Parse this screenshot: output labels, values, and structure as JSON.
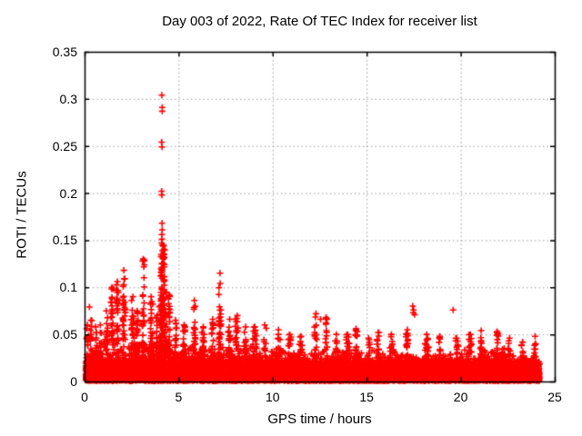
{
  "chart_data": {
    "type": "scatter",
    "title": "Day 003 of 2022, Rate Of TEC Index for receiver list",
    "xlabel": "GPS time / hours",
    "ylabel": "ROTI / TECUs",
    "xlim": [
      0,
      25
    ],
    "ylim": [
      0,
      0.35
    ],
    "grid": true,
    "legend": "none",
    "marker": {
      "glyph": "plus",
      "color": "#ff0000",
      "size": 7,
      "stroke": 1.6
    },
    "colors": {
      "background": "#ffffff",
      "grid": "#9b9b9b",
      "border": "#000000",
      "text": "#000000"
    },
    "xticks": [
      {
        "v": 0,
        "label": "0"
      },
      {
        "v": 5,
        "label": "5"
      },
      {
        "v": 10,
        "label": "10"
      },
      {
        "v": 15,
        "label": "15"
      },
      {
        "v": 20,
        "label": "20"
      },
      {
        "v": 25,
        "label": "25"
      }
    ],
    "yticks": [
      {
        "v": 0,
        "label": "0"
      },
      {
        "v": 0.05,
        "label": "0.05"
      },
      {
        "v": 0.1,
        "label": "0.1"
      },
      {
        "v": 0.15,
        "label": "0.15"
      },
      {
        "v": 0.2,
        "label": "0.2"
      },
      {
        "v": 0.25,
        "label": "0.25"
      },
      {
        "v": 0.3,
        "label": "0.3"
      },
      {
        "v": 0.35,
        "label": "0.35"
      }
    ],
    "data_x_range": [
      0.05,
      24.2
    ],
    "description": "Dense band of ROTI values 0-0.045 TECUs across 0-24.2 h with vertical burst clusters; maximum burst ~0.30 TECUs near 4.1 h.",
    "generator": {
      "seed": 20220103,
      "x_min": 0.05,
      "x_max": 24.2,
      "layers": [
        {
          "n": 4200,
          "y0": 0.0005,
          "amp": 0.009,
          "pow": 1.0,
          "use_profile": false
        },
        {
          "n": 6200,
          "y0": 0.001,
          "amp": 0.021,
          "pow": 1.35,
          "use_profile": false
        },
        {
          "n": 3000,
          "y0": 0.002,
          "amp": 1.0,
          "pow": 2.5,
          "use_profile": true
        }
      ],
      "amp_profile": [
        [
          0,
          0.04
        ],
        [
          1,
          0.046
        ],
        [
          4.7,
          0.041
        ],
        [
          9,
          0.035
        ],
        [
          13,
          0.032
        ],
        [
          17,
          0.03
        ],
        [
          20,
          0.034
        ],
        [
          22.5,
          0.03
        ]
      ],
      "ripple": {
        "f1": 2.7,
        "p1": 1.3,
        "f2": 9.1,
        "a": 0.3
      },
      "clusters": [
        [
          0.15,
          0.1,
          0.06,
          18
        ],
        [
          0.35,
          0.15,
          0.065,
          25
        ],
        [
          0.6,
          0.12,
          0.058,
          20
        ],
        [
          0.85,
          0.15,
          0.06,
          22
        ],
        [
          1.15,
          0.15,
          0.075,
          30
        ],
        [
          1.45,
          0.12,
          0.1,
          35
        ],
        [
          1.75,
          0.12,
          0.106,
          38
        ],
        [
          2.1,
          0.15,
          0.118,
          42
        ],
        [
          2.55,
          0.15,
          0.09,
          32
        ],
        [
          2.8,
          0.1,
          0.075,
          24
        ],
        [
          3.12,
          0.12,
          0.13,
          42
        ],
        [
          3.55,
          0.15,
          0.09,
          30
        ],
        [
          3.85,
          0.1,
          0.07,
          22
        ],
        [
          4.02,
          0.1,
          0.08,
          25
        ],
        [
          4.15,
          0.22,
          0.145,
          130
        ],
        [
          4.32,
          0.1,
          0.095,
          28
        ],
        [
          4.5,
          0.12,
          0.092,
          30
        ],
        [
          4.85,
          0.1,
          0.065,
          22
        ],
        [
          5.3,
          0.15,
          0.06,
          25
        ],
        [
          5.85,
          0.12,
          0.086,
          30
        ],
        [
          6.3,
          0.15,
          0.058,
          24
        ],
        [
          6.8,
          0.12,
          0.066,
          26
        ],
        [
          7.2,
          0.12,
          0.115,
          38
        ],
        [
          7.7,
          0.15,
          0.066,
          28
        ],
        [
          8.1,
          0.2,
          0.07,
          40
        ],
        [
          8.55,
          0.15,
          0.058,
          24
        ],
        [
          9.05,
          0.2,
          0.058,
          28
        ],
        [
          9.6,
          0.15,
          0.06,
          24
        ],
        [
          10.3,
          0.2,
          0.055,
          28
        ],
        [
          10.9,
          0.15,
          0.05,
          22
        ],
        [
          11.5,
          0.15,
          0.048,
          20
        ],
        [
          12.3,
          0.15,
          0.072,
          34
        ],
        [
          12.85,
          0.12,
          0.068,
          26
        ],
        [
          13.4,
          0.15,
          0.05,
          20
        ],
        [
          14.0,
          0.2,
          0.05,
          24
        ],
        [
          14.45,
          0.12,
          0.056,
          24
        ],
        [
          15.1,
          0.15,
          0.046,
          18
        ],
        [
          15.6,
          0.12,
          0.052,
          20
        ],
        [
          16.3,
          0.15,
          0.05,
          20
        ],
        [
          17.15,
          0.12,
          0.055,
          24
        ],
        [
          18.2,
          0.2,
          0.05,
          24
        ],
        [
          18.9,
          0.15,
          0.048,
          20
        ],
        [
          19.8,
          0.15,
          0.046,
          18
        ],
        [
          20.5,
          0.15,
          0.05,
          20
        ],
        [
          21.1,
          0.12,
          0.054,
          22
        ],
        [
          21.95,
          0.15,
          0.053,
          26
        ],
        [
          22.6,
          0.15,
          0.046,
          18
        ],
        [
          23.3,
          0.15,
          0.042,
          16
        ],
        [
          23.95,
          0.15,
          0.048,
          22
        ]
      ],
      "outliers": [
        [
          0.26,
          0.079
        ],
        [
          4.11,
          0.304
        ],
        [
          4.13,
          0.291
        ],
        [
          4.13,
          0.287
        ],
        [
          4.1,
          0.254
        ],
        [
          4.12,
          0.249
        ],
        [
          4.1,
          0.202
        ],
        [
          4.11,
          0.198
        ],
        [
          4.12,
          0.168
        ],
        [
          4.13,
          0.161
        ],
        [
          4.11,
          0.156
        ],
        [
          4.12,
          0.151
        ],
        [
          4.1,
          0.147
        ],
        [
          12.55,
          0.066
        ],
        [
          17.45,
          0.08
        ],
        [
          17.5,
          0.076
        ],
        [
          17.48,
          0.073
        ],
        [
          17.55,
          0.071
        ],
        [
          19.6,
          0.076
        ]
      ]
    }
  }
}
